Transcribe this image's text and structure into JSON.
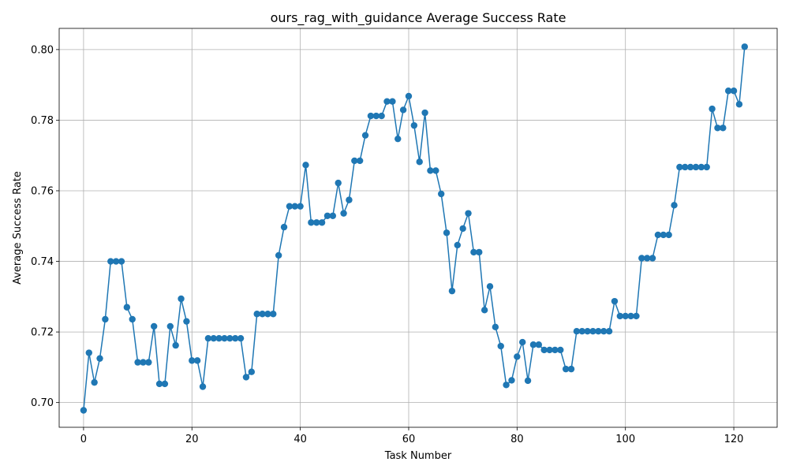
{
  "chart_data": {
    "type": "line",
    "title": "ours_rag_with_guidance Average Success Rate",
    "xlabel": "Task Number",
    "ylabel": "Average Success Rate",
    "xlim": [
      -4.5,
      128
    ],
    "ylim": [
      0.693,
      0.806
    ],
    "xticks": [
      0,
      20,
      40,
      60,
      80,
      100,
      120
    ],
    "yticks": [
      0.7,
      0.72,
      0.74,
      0.76,
      0.78,
      0.8
    ],
    "xtick_labels": [
      "0",
      "20",
      "40",
      "60",
      "80",
      "100",
      "120"
    ],
    "ytick_labels": [
      "0.70",
      "0.72",
      "0.74",
      "0.76",
      "0.78",
      "0.80"
    ],
    "grid": true,
    "legend": "none",
    "series": [
      {
        "color": "#1f77b4",
        "marker": "circle",
        "x": [
          0,
          1,
          2,
          3,
          4,
          5,
          6,
          7,
          8,
          9,
          10,
          11,
          12,
          13,
          14,
          15,
          16,
          17,
          18,
          19,
          20,
          21,
          22,
          23,
          24,
          25,
          26,
          27,
          28,
          29,
          30,
          31,
          32,
          33,
          34,
          35,
          36,
          37,
          38,
          39,
          40,
          41,
          42,
          43,
          44,
          45,
          46,
          47,
          48,
          49,
          50,
          51,
          52,
          53,
          54,
          55,
          56,
          57,
          58,
          59,
          60,
          61,
          62,
          63,
          64,
          65,
          66,
          67,
          68,
          69,
          70,
          71,
          72,
          73,
          74,
          75,
          76,
          77,
          78,
          79,
          80,
          81,
          82,
          83,
          84,
          85,
          86,
          87,
          88,
          89,
          90,
          91,
          92,
          93,
          94,
          95,
          96,
          97,
          98,
          99,
          100,
          101,
          102,
          103,
          104,
          105,
          106,
          107,
          108,
          109,
          110,
          111,
          112,
          113,
          114,
          115,
          116,
          117,
          118,
          119,
          120,
          121,
          122
        ],
        "y": [
          0.6978,
          0.7141,
          0.7057,
          0.7125,
          0.7236,
          0.74,
          0.74,
          0.74,
          0.727,
          0.7236,
          0.7114,
          0.7114,
          0.7114,
          0.7216,
          0.7053,
          0.7053,
          0.7216,
          0.7162,
          0.7294,
          0.723,
          0.7119,
          0.7119,
          0.7045,
          0.7182,
          0.7182,
          0.7182,
          0.7182,
          0.7182,
          0.7182,
          0.7182,
          0.7072,
          0.7087,
          0.7251,
          0.7251,
          0.7251,
          0.7251,
          0.7417,
          0.7497,
          0.7556,
          0.7556,
          0.7556,
          0.7673,
          0.751,
          0.751,
          0.751,
          0.7529,
          0.7529,
          0.7622,
          0.7536,
          0.7574,
          0.7685,
          0.7685,
          0.7757,
          0.7812,
          0.7812,
          0.7812,
          0.7853,
          0.7853,
          0.7747,
          0.7829,
          0.7868,
          0.7785,
          0.7682,
          0.7821,
          0.7657,
          0.7657,
          0.7591,
          0.7481,
          0.7316,
          0.7446,
          0.7493,
          0.7536,
          0.7426,
          0.7426,
          0.7262,
          0.7329,
          0.7214,
          0.716,
          0.705,
          0.7063,
          0.713,
          0.7171,
          0.7062,
          0.7164,
          0.7164,
          0.7149,
          0.7149,
          0.7149,
          0.7149,
          0.7095,
          0.7095,
          0.7202,
          0.7202,
          0.7202,
          0.7202,
          0.7202,
          0.7202,
          0.7202,
          0.7287,
          0.7245,
          0.7245,
          0.7245,
          0.7245,
          0.7409,
          0.7409,
          0.7409,
          0.7475,
          0.7475,
          0.7475,
          0.7559,
          0.7667,
          0.7667,
          0.7667,
          0.7667,
          0.7667,
          0.7667,
          0.7832,
          0.7778,
          0.7778,
          0.7883,
          0.7883,
          0.7845,
          0.8008
        ]
      }
    ]
  }
}
